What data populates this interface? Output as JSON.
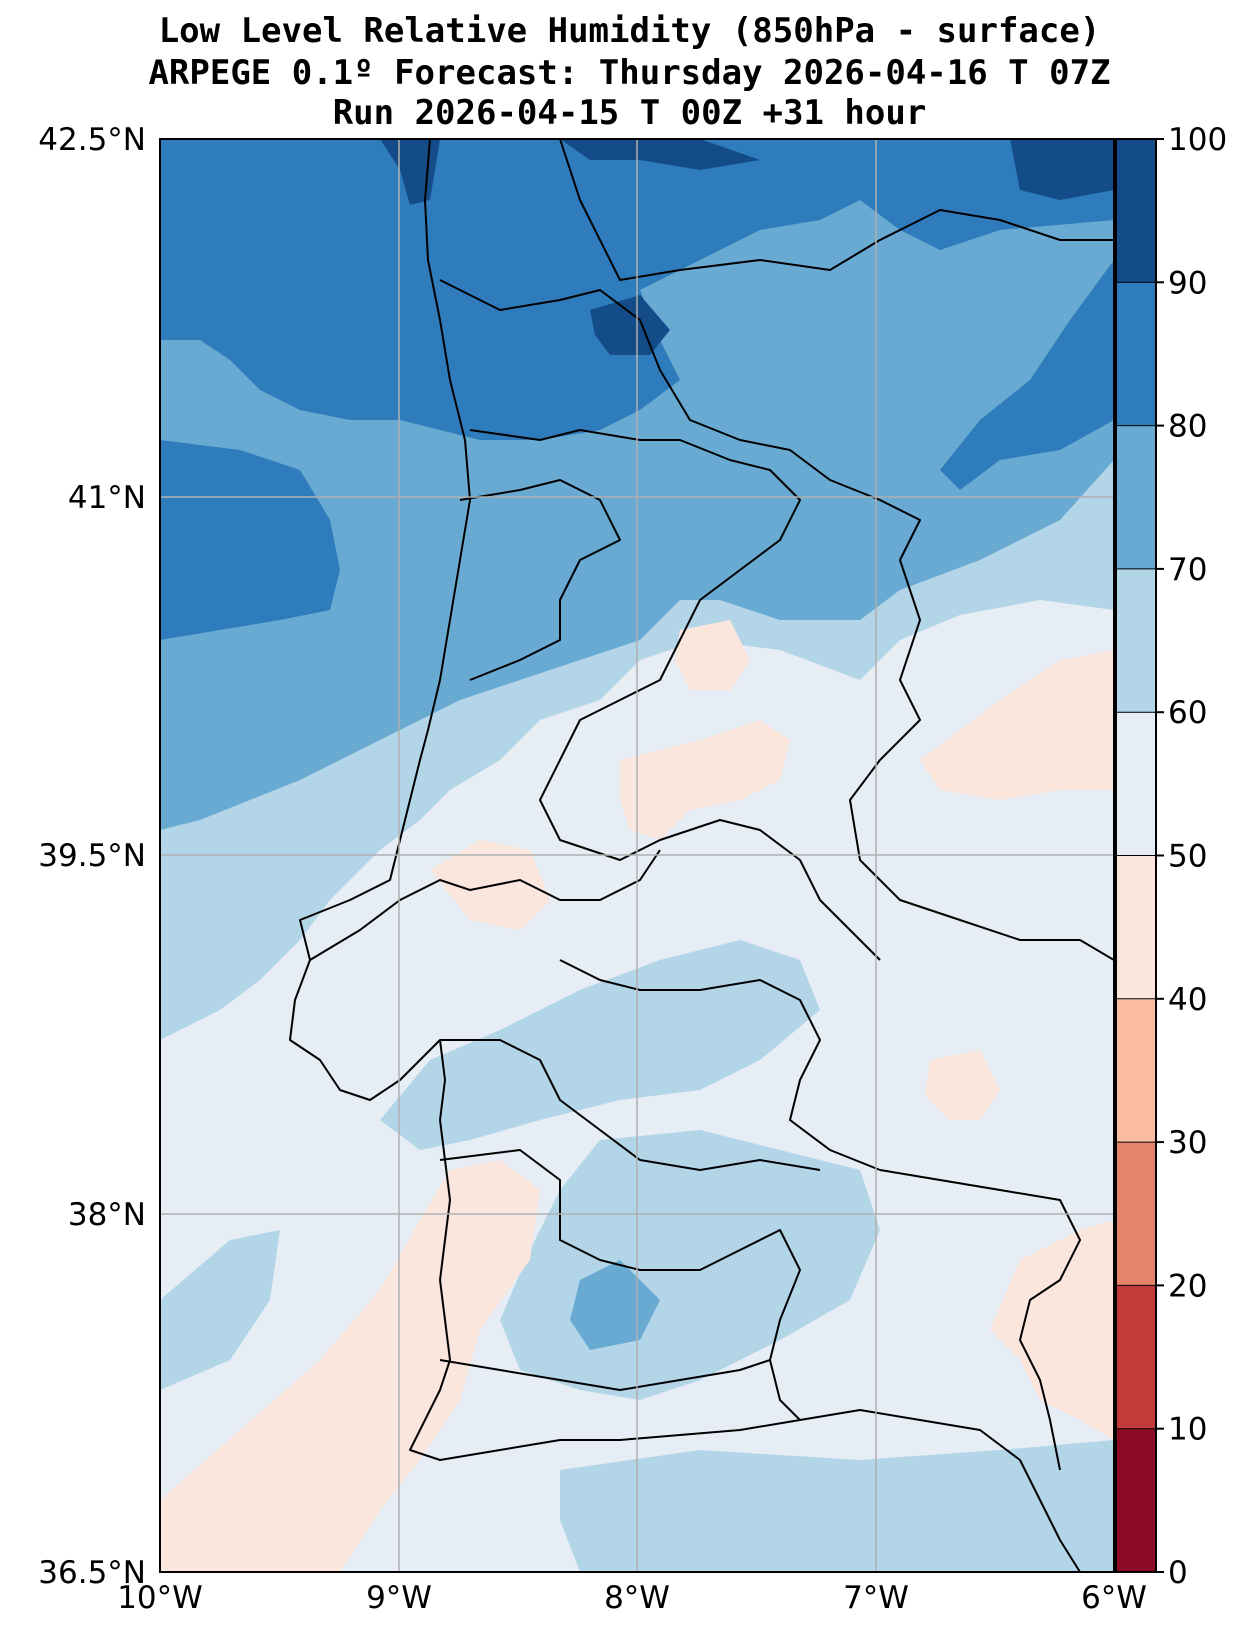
{
  "title": {
    "line1": "Low Level Relative Humidity (850hPa - surface)",
    "line2": "ARPEGE 0.1º Forecast: Thursday 2026-04-16 T 07Z",
    "line3": "Run 2026-04-15 T 00Z +31 hour"
  },
  "map": {
    "lon_range": [
      -10,
      -6
    ],
    "lat_range": [
      36.5,
      42.5
    ],
    "lon_ticks": [
      {
        "value": -10,
        "label": "10°W"
      },
      {
        "value": -9,
        "label": "9°W"
      },
      {
        "value": -8,
        "label": "8°W"
      },
      {
        "value": -7,
        "label": "7°W"
      },
      {
        "value": -6,
        "label": "6°W"
      }
    ],
    "lat_ticks": [
      {
        "value": 42.5,
        "label": "42.5°N"
      },
      {
        "value": 41,
        "label": "41°N"
      },
      {
        "value": 39.5,
        "label": "39.5°N"
      },
      {
        "value": 38,
        "label": "38°N"
      },
      {
        "value": 36.5,
        "label": "36.5°N"
      }
    ],
    "grid": true
  },
  "colorbar": {
    "levels": [
      0,
      10,
      20,
      30,
      40,
      50,
      60,
      70,
      80,
      90,
      100
    ],
    "colors": [
      "#8b0a24",
      "#c33a3a",
      "#e5836b",
      "#f9bca3",
      "#fbe6dd",
      "#e6edf5",
      "#b3d5e8",
      "#68aad2",
      "#2f7cbc",
      "#134c89"
    ],
    "labels": [
      "0",
      "10",
      "20",
      "30",
      "40",
      "50",
      "60",
      "70",
      "80",
      "90",
      "100"
    ]
  }
}
